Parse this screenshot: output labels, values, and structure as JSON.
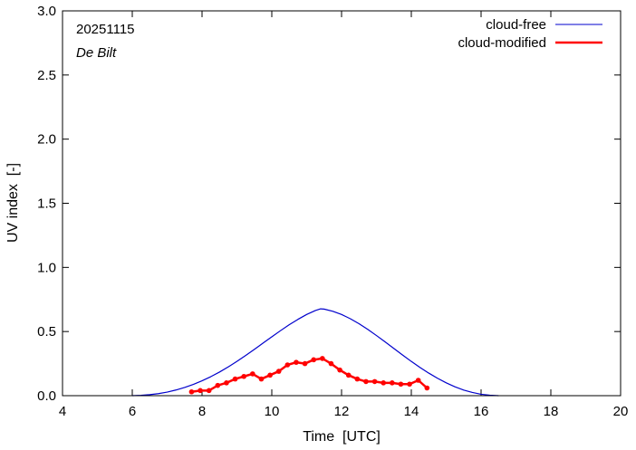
{
  "chart_data": {
    "type": "line",
    "title": "",
    "xlabel": "Time  [UTC]",
    "ylabel": "UV index  [-]",
    "xlim": [
      4,
      20
    ],
    "ylim": [
      0.0,
      3.0
    ],
    "x_ticks": [
      4,
      6,
      8,
      10,
      12,
      14,
      16,
      18,
      20
    ],
    "y_ticks": [
      "0.0",
      "0.5",
      "1.0",
      "1.5",
      "2.0",
      "2.5",
      "3.0"
    ],
    "y_tick_values": [
      0.0,
      0.5,
      1.0,
      1.5,
      2.0,
      2.5,
      3.0
    ],
    "grid": false,
    "legend_position": "top-right",
    "annotations": {
      "date": "20251115",
      "station": "De Bilt"
    },
    "series": [
      {
        "name": "cloud-free",
        "color": "#0000cc",
        "markers": false,
        "x": [
          6.0,
          6.25,
          6.5,
          6.75,
          7.0,
          7.25,
          7.5,
          7.75,
          8.0,
          8.25,
          8.5,
          8.75,
          9.0,
          9.25,
          9.5,
          9.75,
          10.0,
          10.25,
          10.5,
          10.75,
          11.0,
          11.25,
          11.4,
          11.5,
          11.75,
          12.0,
          12.25,
          12.5,
          12.75,
          13.0,
          13.25,
          13.5,
          13.75,
          14.0,
          14.25,
          14.5,
          14.75,
          15.0,
          15.25,
          15.5,
          15.75,
          16.0,
          16.25,
          16.5
        ],
        "y": [
          0.0,
          0.003,
          0.008,
          0.016,
          0.028,
          0.044,
          0.064,
          0.088,
          0.116,
          0.148,
          0.184,
          0.224,
          0.267,
          0.313,
          0.361,
          0.41,
          0.459,
          0.507,
          0.553,
          0.595,
          0.633,
          0.664,
          0.677,
          0.675,
          0.658,
          0.633,
          0.6,
          0.561,
          0.517,
          0.469,
          0.419,
          0.368,
          0.317,
          0.267,
          0.22,
          0.176,
          0.136,
          0.1,
          0.069,
          0.044,
          0.025,
          0.011,
          0.004,
          0.0
        ]
      },
      {
        "name": "cloud-modified",
        "color": "#ff0000",
        "markers": true,
        "x": [
          7.7,
          7.95,
          8.2,
          8.45,
          8.7,
          8.95,
          9.2,
          9.45,
          9.7,
          9.95,
          10.2,
          10.45,
          10.7,
          10.95,
          11.2,
          11.45,
          11.7,
          11.95,
          12.2,
          12.45,
          12.7,
          12.95,
          13.2,
          13.45,
          13.7,
          13.95,
          14.2,
          14.45
        ],
        "y": [
          0.03,
          0.04,
          0.04,
          0.08,
          0.1,
          0.13,
          0.15,
          0.17,
          0.13,
          0.16,
          0.19,
          0.24,
          0.26,
          0.25,
          0.28,
          0.29,
          0.25,
          0.2,
          0.16,
          0.13,
          0.11,
          0.11,
          0.1,
          0.1,
          0.09,
          0.09,
          0.12,
          0.06
        ]
      }
    ]
  }
}
